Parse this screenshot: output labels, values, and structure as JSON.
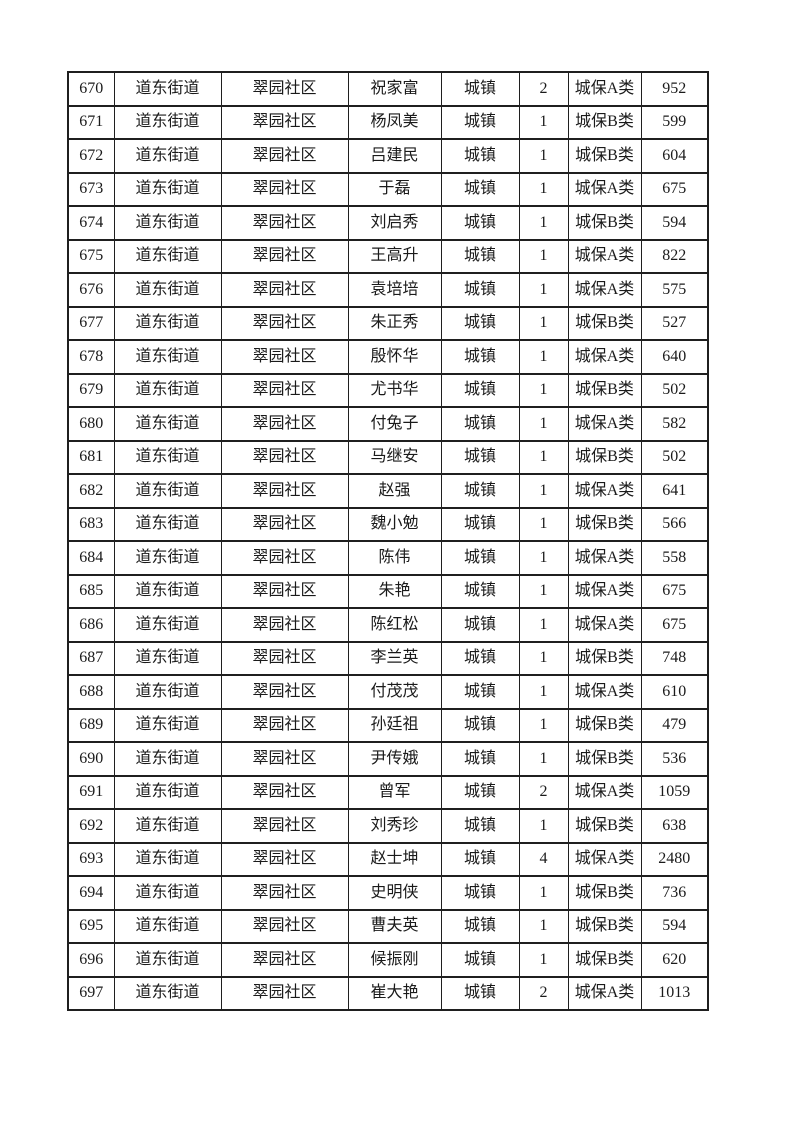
{
  "page": {
    "background_color": "#ffffff",
    "table_border_color": "#1f1f1f",
    "text_color": "#1a1a1a"
  },
  "table": {
    "type": "table",
    "has_visible_header": false,
    "columns": [
      "seq",
      "street",
      "community",
      "name",
      "household_type",
      "person_count",
      "category",
      "amount"
    ],
    "rows": [
      [
        "670",
        "道东街道",
        "翠园社区",
        "祝家富",
        "城镇",
        "2",
        "城保A类",
        "952"
      ],
      [
        "671",
        "道东街道",
        "翠园社区",
        "杨凤美",
        "城镇",
        "1",
        "城保B类",
        "599"
      ],
      [
        "672",
        "道东街道",
        "翠园社区",
        "吕建民",
        "城镇",
        "1",
        "城保B类",
        "604"
      ],
      [
        "673",
        "道东街道",
        "翠园社区",
        "于磊",
        "城镇",
        "1",
        "城保A类",
        "675"
      ],
      [
        "674",
        "道东街道",
        "翠园社区",
        "刘启秀",
        "城镇",
        "1",
        "城保B类",
        "594"
      ],
      [
        "675",
        "道东街道",
        "翠园社区",
        "王高升",
        "城镇",
        "1",
        "城保A类",
        "822"
      ],
      [
        "676",
        "道东街道",
        "翠园社区",
        "袁培培",
        "城镇",
        "1",
        "城保A类",
        "575"
      ],
      [
        "677",
        "道东街道",
        "翠园社区",
        "朱正秀",
        "城镇",
        "1",
        "城保B类",
        "527"
      ],
      [
        "678",
        "道东街道",
        "翠园社区",
        "殷怀华",
        "城镇",
        "1",
        "城保A类",
        "640"
      ],
      [
        "679",
        "道东街道",
        "翠园社区",
        "尤书华",
        "城镇",
        "1",
        "城保B类",
        "502"
      ],
      [
        "680",
        "道东街道",
        "翠园社区",
        "付兔子",
        "城镇",
        "1",
        "城保A类",
        "582"
      ],
      [
        "681",
        "道东街道",
        "翠园社区",
        "马继安",
        "城镇",
        "1",
        "城保B类",
        "502"
      ],
      [
        "682",
        "道东街道",
        "翠园社区",
        "赵强",
        "城镇",
        "1",
        "城保A类",
        "641"
      ],
      [
        "683",
        "道东街道",
        "翠园社区",
        "魏小勉",
        "城镇",
        "1",
        "城保B类",
        "566"
      ],
      [
        "684",
        "道东街道",
        "翠园社区",
        "陈伟",
        "城镇",
        "1",
        "城保A类",
        "558"
      ],
      [
        "685",
        "道东街道",
        "翠园社区",
        "朱艳",
        "城镇",
        "1",
        "城保A类",
        "675"
      ],
      [
        "686",
        "道东街道",
        "翠园社区",
        "陈红松",
        "城镇",
        "1",
        "城保A类",
        "675"
      ],
      [
        "687",
        "道东街道",
        "翠园社区",
        "李兰英",
        "城镇",
        "1",
        "城保B类",
        "748"
      ],
      [
        "688",
        "道东街道",
        "翠园社区",
        "付茂茂",
        "城镇",
        "1",
        "城保A类",
        "610"
      ],
      [
        "689",
        "道东街道",
        "翠园社区",
        "孙廷祖",
        "城镇",
        "1",
        "城保B类",
        "479"
      ],
      [
        "690",
        "道东街道",
        "翠园社区",
        "尹传娥",
        "城镇",
        "1",
        "城保B类",
        "536"
      ],
      [
        "691",
        "道东街道",
        "翠园社区",
        "曾军",
        "城镇",
        "2",
        "城保A类",
        "1059"
      ],
      [
        "692",
        "道东街道",
        "翠园社区",
        "刘秀珍",
        "城镇",
        "1",
        "城保B类",
        "638"
      ],
      [
        "693",
        "道东街道",
        "翠园社区",
        "赵士坤",
        "城镇",
        "4",
        "城保A类",
        "2480"
      ],
      [
        "694",
        "道东街道",
        "翠园社区",
        "史明侠",
        "城镇",
        "1",
        "城保B类",
        "736"
      ],
      [
        "695",
        "道东街道",
        "翠园社区",
        "曹夫英",
        "城镇",
        "1",
        "城保B类",
        "594"
      ],
      [
        "696",
        "道东街道",
        "翠园社区",
        "候振刚",
        "城镇",
        "1",
        "城保B类",
        "620"
      ],
      [
        "697",
        "道东街道",
        "翠园社区",
        "崔大艳",
        "城镇",
        "2",
        "城保A类",
        "1013"
      ]
    ]
  }
}
